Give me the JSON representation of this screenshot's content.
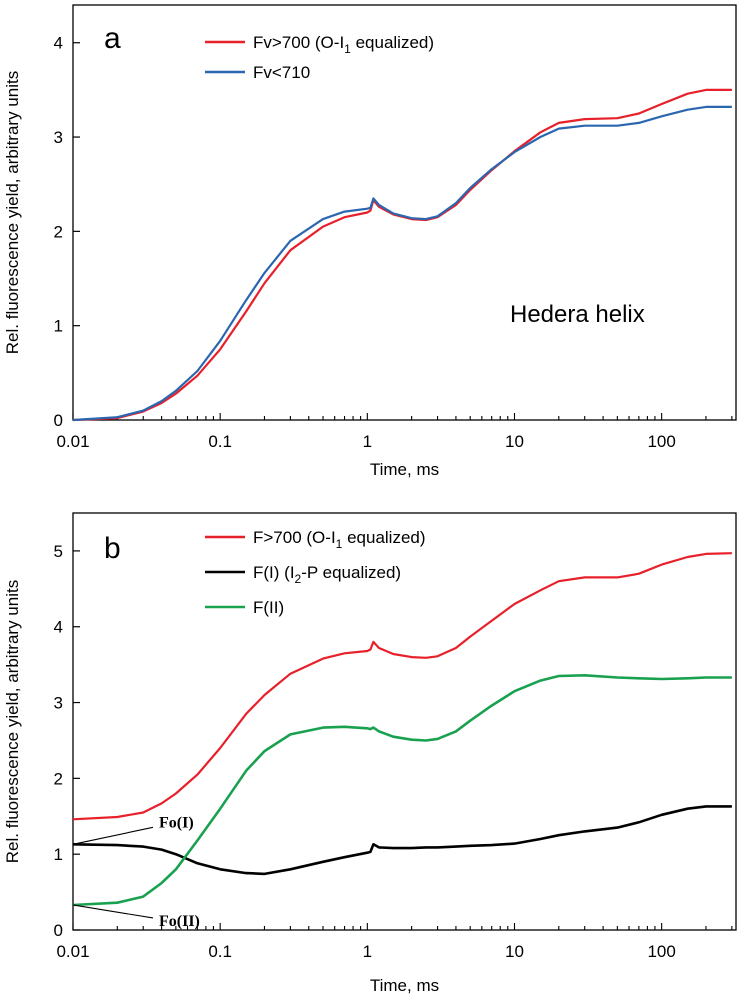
{
  "chart_data": [
    {
      "type": "line",
      "panel_label": "a",
      "xlabel": "Time, ms",
      "ylabel": "Rel. fluorescence yield, arbitrary units",
      "x_scale": "log",
      "xlim": [
        0.01,
        320
      ],
      "ylim": [
        0,
        4.4
      ],
      "x_ticks": [
        0.01,
        0.1,
        1,
        10,
        100
      ],
      "x_tick_labels": [
        "0.01",
        "0.1",
        "1",
        "10",
        "100"
      ],
      "y_ticks": [
        0,
        1,
        2,
        3,
        4
      ],
      "y_tick_labels": [
        "0",
        "1",
        "2",
        "3",
        "4"
      ],
      "legend_placement": "top-center",
      "annotation": "Hedera helix",
      "series": [
        {
          "name": "Fv>700 (O-I1 equalized)",
          "legend_main": "Fv>700 (O-I",
          "legend_sub": "1",
          "legend_tail": " equalized)",
          "color": "#e8202a",
          "x": [
            0.01,
            0.02,
            0.03,
            0.04,
            0.05,
            0.07,
            0.1,
            0.15,
            0.2,
            0.3,
            0.5,
            0.7,
            1.0,
            1.05,
            1.1,
            1.2,
            1.5,
            2.0,
            2.5,
            3.0,
            4.0,
            5.0,
            7.0,
            10,
            15,
            20,
            30,
            50,
            70,
            100,
            150,
            200,
            300
          ],
          "y": [
            0.0,
            0.02,
            0.09,
            0.18,
            0.28,
            0.47,
            0.75,
            1.15,
            1.45,
            1.8,
            2.05,
            2.15,
            2.2,
            2.22,
            2.33,
            2.26,
            2.18,
            2.13,
            2.12,
            2.15,
            2.28,
            2.44,
            2.65,
            2.85,
            3.05,
            3.15,
            3.19,
            3.2,
            3.25,
            3.35,
            3.46,
            3.5,
            3.5
          ]
        },
        {
          "name": "Fv<710",
          "color": "#2b67b1",
          "x": [
            0.01,
            0.02,
            0.03,
            0.04,
            0.05,
            0.07,
            0.1,
            0.15,
            0.2,
            0.3,
            0.5,
            0.7,
            1.0,
            1.05,
            1.1,
            1.2,
            1.5,
            2.0,
            2.5,
            3.0,
            4.0,
            5.0,
            7.0,
            10,
            15,
            20,
            30,
            50,
            70,
            100,
            150,
            200,
            300
          ],
          "y": [
            0.0,
            0.03,
            0.1,
            0.2,
            0.31,
            0.52,
            0.84,
            1.27,
            1.56,
            1.9,
            2.13,
            2.21,
            2.24,
            2.25,
            2.35,
            2.28,
            2.19,
            2.14,
            2.13,
            2.16,
            2.3,
            2.46,
            2.66,
            2.84,
            3.0,
            3.09,
            3.12,
            3.12,
            3.15,
            3.22,
            3.29,
            3.32,
            3.32
          ]
        }
      ]
    },
    {
      "type": "line",
      "panel_label": "b",
      "xlabel": "Time, ms",
      "ylabel": "Rel. fluorescence yield, arbitrary units",
      "x_scale": "log",
      "xlim": [
        0.01,
        320
      ],
      "ylim": [
        0,
        5.5
      ],
      "x_ticks": [
        0.01,
        0.1,
        1,
        10,
        100
      ],
      "x_tick_labels": [
        "0.01",
        "0.1",
        "1",
        "10",
        "100"
      ],
      "y_ticks": [
        0,
        1,
        2,
        3,
        4,
        5
      ],
      "y_tick_labels": [
        "0",
        "1",
        "2",
        "3",
        "4",
        "5"
      ],
      "legend_placement": "top-center",
      "annotations": [
        {
          "text": "Fo(I)",
          "x": 0.01,
          "y": 1.13
        },
        {
          "text": "Fo(II)",
          "x": 0.01,
          "y": 0.33
        }
      ],
      "series": [
        {
          "name": "F>700 (O-I1 equalized)",
          "legend_main": "F>700 (O-I",
          "legend_sub": "1",
          "legend_tail": " equalized)",
          "color": "#e8202a",
          "x": [
            0.01,
            0.02,
            0.03,
            0.04,
            0.05,
            0.07,
            0.1,
            0.15,
            0.2,
            0.3,
            0.5,
            0.7,
            1.0,
            1.05,
            1.1,
            1.2,
            1.5,
            2.0,
            2.5,
            3.0,
            4.0,
            5.0,
            7.0,
            10,
            15,
            20,
            30,
            50,
            70,
            100,
            150,
            200,
            300
          ],
          "y": [
            1.46,
            1.49,
            1.55,
            1.67,
            1.8,
            2.05,
            2.4,
            2.85,
            3.1,
            3.38,
            3.58,
            3.65,
            3.68,
            3.7,
            3.8,
            3.72,
            3.64,
            3.6,
            3.59,
            3.61,
            3.72,
            3.87,
            4.08,
            4.3,
            4.48,
            4.6,
            4.65,
            4.65,
            4.7,
            4.82,
            4.92,
            4.96,
            4.97
          ]
        },
        {
          "name": "F(I) (I2-P equalized)",
          "legend_main": "F(I) (I",
          "legend_sub": "2",
          "legend_tail": "-P equalized)",
          "color": "#000000",
          "x": [
            0.01,
            0.02,
            0.03,
            0.04,
            0.05,
            0.07,
            0.1,
            0.15,
            0.2,
            0.3,
            0.5,
            0.7,
            1.0,
            1.05,
            1.1,
            1.2,
            1.5,
            2.0,
            2.5,
            3.0,
            4.0,
            5.0,
            7.0,
            10,
            15,
            20,
            30,
            50,
            70,
            100,
            150,
            200,
            300
          ],
          "y": [
            1.13,
            1.12,
            1.1,
            1.06,
            1.0,
            0.88,
            0.8,
            0.75,
            0.74,
            0.8,
            0.9,
            0.96,
            1.02,
            1.03,
            1.13,
            1.09,
            1.08,
            1.08,
            1.09,
            1.09,
            1.1,
            1.11,
            1.12,
            1.14,
            1.2,
            1.25,
            1.3,
            1.35,
            1.42,
            1.52,
            1.6,
            1.63,
            1.63
          ]
        },
        {
          "name": "F(II)",
          "color": "#1aa150",
          "x": [
            0.01,
            0.02,
            0.03,
            0.04,
            0.05,
            0.07,
            0.1,
            0.15,
            0.2,
            0.3,
            0.5,
            0.7,
            1.0,
            1.05,
            1.1,
            1.2,
            1.5,
            2.0,
            2.5,
            3.0,
            4.0,
            5.0,
            7.0,
            10,
            15,
            20,
            30,
            50,
            70,
            100,
            150,
            200,
            300
          ],
          "y": [
            0.33,
            0.36,
            0.44,
            0.62,
            0.8,
            1.18,
            1.6,
            2.1,
            2.36,
            2.58,
            2.67,
            2.68,
            2.66,
            2.65,
            2.67,
            2.62,
            2.55,
            2.51,
            2.5,
            2.52,
            2.62,
            2.76,
            2.96,
            3.15,
            3.29,
            3.35,
            3.36,
            3.33,
            3.32,
            3.31,
            3.32,
            3.33,
            3.33
          ]
        }
      ]
    }
  ]
}
